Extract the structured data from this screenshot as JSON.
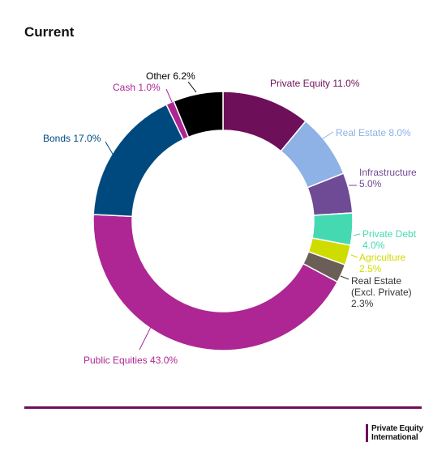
{
  "title": "Current",
  "chart_data": {
    "type": "pie",
    "variant": "donut",
    "title": "Current",
    "unit": "%",
    "slices": [
      {
        "name": "Private Equity",
        "value": 11.0,
        "color": "#6e0f5a",
        "label_lines": [
          "Private Equity 11.0%"
        ]
      },
      {
        "name": "Real Estate",
        "value": 8.0,
        "color": "#8eb1e6",
        "label_lines": [
          "Real Estate 8.0%"
        ]
      },
      {
        "name": "Infrastructure",
        "value": 5.0,
        "color": "#6f4b95",
        "label_lines": [
          "Infrastructure",
          "5.0%"
        ]
      },
      {
        "name": "Private Debt",
        "value": 4.0,
        "color": "#45d9b1",
        "label_lines": [
          "Private Debt",
          "4.0%"
        ]
      },
      {
        "name": "Agriculture",
        "value": 2.5,
        "color": "#cfdc00",
        "label_lines": [
          "Agriculture",
          "2.5%"
        ]
      },
      {
        "name": "Real Estate (Excl. Private)",
        "value": 2.3,
        "color": "#6b5e57",
        "label_lines": [
          "Real Estate",
          "(Excl. Private)",
          "2.3%"
        ]
      },
      {
        "name": "Public Equities",
        "value": 43.0,
        "color": "#ad2693",
        "label_lines": [
          "Public Equities 43.0%"
        ]
      },
      {
        "name": "Bonds",
        "value": 17.0,
        "color": "#00497f",
        "label_lines": [
          "Bonds 17.0%"
        ]
      },
      {
        "name": "Cash",
        "value": 1.0,
        "color": "#ad2693",
        "label_lines": [
          "Cash 1.0%"
        ]
      },
      {
        "name": "Other",
        "value": 6.2,
        "color": "#000000",
        "label_lines": [
          "Other 6.2%"
        ]
      }
    ]
  },
  "brand": {
    "line1": "Private Equity",
    "line2": "International",
    "color": "#6e0f5a"
  }
}
